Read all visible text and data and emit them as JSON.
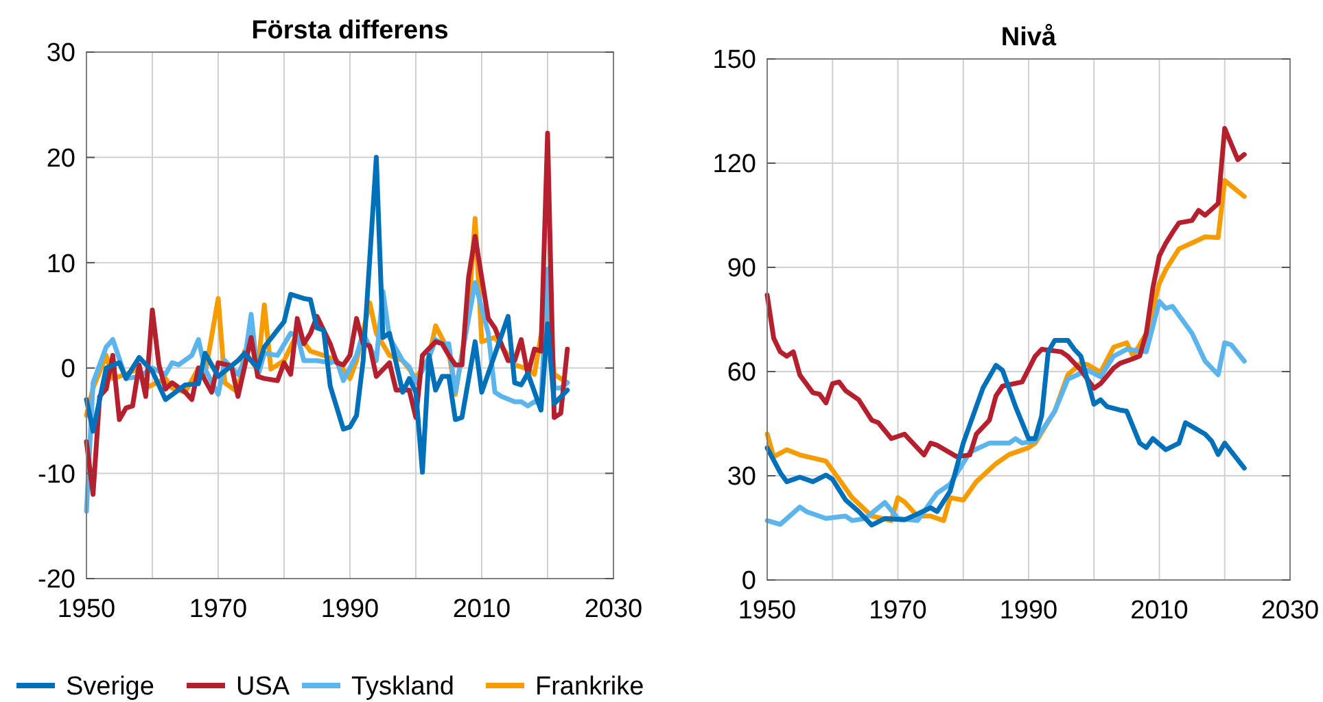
{
  "chart_data": [
    {
      "type": "line",
      "title": "Första differens",
      "legend": "bottom",
      "grid": true,
      "line_style": "solid",
      "xlim": [
        1950,
        2030
      ],
      "xticks": [
        1950,
        {
          "value": 1960,
          "label": null
        },
        1970,
        {
          "value": 1980,
          "label": null
        },
        1990,
        {
          "value": 2000,
          "label": null
        },
        2010,
        {
          "value": 2020,
          "label": null
        },
        2030
      ],
      "ylim": [
        -20,
        30
      ],
      "yticks": [
        -20,
        -10,
        0,
        10,
        20,
        30
      ],
      "series": [
        {
          "name": "Sverige",
          "color": "#0070b8",
          "x": [
            1950,
            1951,
            1953,
            1955,
            1956,
            1958,
            1960,
            1962,
            1965,
            1967,
            1968,
            1970,
            1973,
            1974,
            1976,
            1977,
            1980,
            1981,
            1983,
            1984,
            1985,
            1986,
            1987,
            1989,
            1990,
            1991,
            1992,
            1994,
            1995,
            1996,
            1998,
            1999,
            2000,
            2001,
            2002,
            2003,
            2004,
            2005,
            2006,
            2007,
            2009,
            2010,
            2014,
            2015,
            2016,
            2017,
            2019,
            2020,
            2021,
            2023
          ],
          "values": [
            -3,
            -6,
            0,
            0.5,
            -1,
            1,
            -0.3,
            -3,
            -1.6,
            -1.5,
            1.4,
            -0.8,
            0.7,
            1.4,
            0,
            2,
            4.4,
            7,
            6.6,
            6.5,
            3.8,
            3.6,
            -1.7,
            -5.8,
            -5.6,
            -4.5,
            0.7,
            20,
            2.9,
            3.3,
            -2.3,
            -1,
            -2.3,
            -9.9,
            1.2,
            -2.1,
            -0.8,
            -0.8,
            -4.9,
            -4.7,
            2.5,
            -2.3,
            4.9,
            -1.4,
            -1.6,
            -0.5,
            -4,
            4.2,
            -3.4,
            -2.1
          ]
        },
        {
          "name": "USA",
          "color": "#b5202e",
          "x": [
            1950,
            1951,
            1952,
            1953,
            1954,
            1955,
            1956,
            1957,
            1958,
            1959,
            1960,
            1961,
            1962,
            1963,
            1965,
            1966,
            1967,
            1969,
            1970,
            1972,
            1973,
            1975,
            1976,
            1977,
            1979,
            1980,
            1981,
            1982,
            1983,
            1984,
            1985,
            1987,
            1988,
            1989,
            1990,
            1991,
            1992,
            1993,
            1994,
            1996,
            1997,
            1999,
            2000,
            2001,
            2003,
            2004,
            2005,
            2006,
            2007,
            2008,
            2009,
            2010,
            2011,
            2012,
            2014,
            2015,
            2016,
            2017,
            2018,
            2019,
            2020,
            2021,
            2022,
            2023
          ],
          "values": [
            -7,
            -12,
            -2.7,
            -2,
            1.2,
            -4.9,
            -3.8,
            -3.6,
            0.3,
            -2.7,
            5.5,
            0.3,
            -2,
            -1.4,
            -2.3,
            -3,
            0,
            -2.3,
            0.5,
            0.2,
            -2.7,
            2.9,
            -0.8,
            -1,
            -1.2,
            0.5,
            -0.6,
            4.7,
            2.3,
            3.3,
            4.9,
            2.3,
            0.5,
            0.3,
            1.2,
            4.7,
            2.3,
            2.1,
            -0.8,
            0.5,
            -2.1,
            -2.1,
            -4.7,
            1.2,
            2.5,
            2.3,
            1.2,
            0.3,
            0.3,
            8.6,
            12.5,
            8.6,
            4.7,
            3.8,
            0.7,
            0.7,
            2.7,
            -0.6,
            1.8,
            1.6,
            22.3,
            -4.7,
            -4.3,
            1.8
          ]
        },
        {
          "name": "Tyskland",
          "color": "#5bb4ec",
          "x": [
            1950,
            1951,
            1953,
            1954,
            1956,
            1958,
            1960,
            1962,
            1963,
            1964,
            1966,
            1967,
            1968,
            1970,
            1971,
            1973,
            1974,
            1975,
            1976,
            1977,
            1979,
            1981,
            1982,
            1983,
            1985,
            1987,
            1988,
            1989,
            1991,
            1992,
            1994,
            1995,
            1996,
            1998,
            1999,
            2000,
            2002,
            2003,
            2004,
            2005,
            2006,
            2008,
            2009,
            2011,
            2012,
            2013,
            2015,
            2016,
            2017,
            2018,
            2019,
            2020,
            2021,
            2022,
            2023
          ],
          "values": [
            -13.6,
            -1.4,
            2,
            2.7,
            -1,
            -0.8,
            0,
            -0.6,
            0.5,
            0.3,
            1.2,
            2.7,
            -0.1,
            -2.5,
            0.7,
            -0.6,
            0.7,
            5.1,
            -0.8,
            1.4,
            1.2,
            3.3,
            3.1,
            0.7,
            0.7,
            0.5,
            0.7,
            -1.2,
            1.2,
            3.3,
            0.7,
            7.3,
            2.9,
            0.7,
            0.1,
            -1.4,
            1,
            2.7,
            2.3,
            2.3,
            -2.3,
            4.7,
            8.1,
            3.3,
            -2.3,
            -2.7,
            -3.2,
            -3.2,
            -3.6,
            -3.2,
            -3.4,
            9.4,
            -1.9,
            -1.9,
            -1.4
          ]
        },
        {
          "name": "Frankrike",
          "color": "#f59c00",
          "x": [
            1950,
            1951,
            1953,
            1954,
            1956,
            1958,
            1959,
            1962,
            1963,
            1965,
            1967,
            1968,
            1970,
            1971,
            1973,
            1974,
            1976,
            1977,
            1978,
            1980,
            1982,
            1984,
            1986,
            1988,
            1990,
            1991,
            1993,
            1994,
            1996,
            1998,
            1999,
            2000,
            2002,
            2003,
            2005,
            2006,
            2008,
            2009,
            2010,
            2012,
            2014,
            2015,
            2017,
            2018,
            2020,
            2021,
            2023
          ],
          "values": [
            -4.5,
            -1.9,
            1.2,
            -1,
            -0.6,
            0,
            -1.9,
            -1,
            -1.9,
            -2.3,
            0,
            -0.6,
            6.6,
            -1.4,
            -2.3,
            1.6,
            -0.2,
            6,
            -0.1,
            0.7,
            3.3,
            1.6,
            1.2,
            0.7,
            -1,
            0.7,
            6.2,
            3.3,
            1.2,
            0.7,
            -0.1,
            -1,
            1,
            4,
            1.6,
            -2.5,
            5.1,
            14.2,
            2.5,
            2.9,
            1.2,
            0.3,
            -0.1,
            -0.6,
            6.8,
            -0.6,
            -1.4
          ]
        }
      ]
    },
    {
      "type": "line",
      "title": "Nivå",
      "grid": true,
      "line_style": "solid",
      "xlim": [
        1950,
        2030
      ],
      "xticks": [
        1950,
        {
          "value": 1960,
          "label": null
        },
        1970,
        {
          "value": 1980,
          "label": null
        },
        1990,
        {
          "value": 2000,
          "label": null
        },
        2010,
        {
          "value": 2020,
          "label": null
        },
        2030
      ],
      "ylim": [
        0,
        150
      ],
      "yticks": [
        0,
        30,
        60,
        90,
        120,
        150
      ],
      "series": [
        {
          "color": "#0070b8",
          "x": [
            1950,
            1952,
            1953,
            1955,
            1957,
            1959,
            1960,
            1962,
            1964,
            1966,
            1968,
            1971,
            1973,
            1975,
            1976,
            1978,
            1980,
            1983,
            1985,
            1986,
            1988,
            1990,
            1991,
            1992,
            1993,
            1994,
            1996,
            1997,
            1998,
            2000,
            2001,
            2002,
            2004,
            2005,
            2007,
            2008,
            2009,
            2011,
            2013,
            2014,
            2017,
            2018,
            2019,
            2020,
            2023
          ],
          "values": [
            38,
            30.9,
            28.3,
            29.6,
            28.3,
            30.2,
            29,
            23,
            19.7,
            15.8,
            17.7,
            17.3,
            19,
            20.8,
            19.7,
            25.6,
            39.4,
            55.2,
            61.8,
            60.4,
            49.9,
            40.7,
            40.7,
            47.3,
            65.7,
            69,
            69,
            66.4,
            64.4,
            50.6,
            51.9,
            49.9,
            48.9,
            48.6,
            39.4,
            38.1,
            40.7,
            37.5,
            39.4,
            45.3,
            42,
            40,
            36.1,
            39.4,
            32.2
          ]
        },
        {
          "color": "#b5202e",
          "x": [
            1950,
            1951,
            1952,
            1953,
            1954,
            1955,
            1957,
            1958,
            1959,
            1960,
            1961,
            1962,
            1964,
            1966,
            1967,
            1969,
            1971,
            1972,
            1974,
            1975,
            1976,
            1979,
            1981,
            1982,
            1984,
            1985,
            1986,
            1989,
            1991,
            1992,
            1995,
            1996,
            1998,
            2000,
            2001,
            2003,
            2004,
            2006,
            2007,
            2008,
            2009,
            2010,
            2011,
            2012,
            2013,
            2015,
            2016,
            2017,
            2019,
            2020,
            2022,
            2023
          ],
          "values": [
            82,
            69.6,
            65.7,
            64.4,
            65.7,
            59,
            53.9,
            53.5,
            51,
            56.5,
            57,
            54.5,
            51.9,
            46,
            45.3,
            40.7,
            42,
            40,
            36,
            39.4,
            38.8,
            35.5,
            36,
            42,
            46,
            53,
            55.8,
            57,
            64.4,
            66.4,
            65.7,
            64.4,
            60.4,
            55.2,
            56.5,
            61,
            62.4,
            63.7,
            64.5,
            71,
            84,
            93.3,
            97,
            100,
            102.8,
            103.5,
            106.4,
            105,
            108.4,
            130,
            121,
            122.5
          ]
        },
        {
          "color": "#5bb4ec",
          "x": [
            1950,
            1952,
            1955,
            1956,
            1959,
            1962,
            1963,
            1965,
            1968,
            1970,
            1973,
            1976,
            1978,
            1981,
            1984,
            1987,
            1988,
            1989,
            1991,
            1994,
            1996,
            1999,
            2001,
            2003,
            2005,
            2008,
            2010,
            2011,
            2012,
            2015,
            2017,
            2019,
            2020,
            2021,
            2023
          ],
          "values": [
            17.1,
            16,
            21,
            19.7,
            17.7,
            18.4,
            17.1,
            17.7,
            22.3,
            17.7,
            17.1,
            25,
            27.6,
            36.8,
            39.4,
            39.4,
            40.7,
            39.4,
            40,
            48.6,
            57.8,
            60.4,
            58.5,
            64.4,
            66.4,
            65.7,
            80.2,
            78.2,
            78.8,
            71,
            63,
            59.1,
            68.3,
            67.7,
            63
          ]
        },
        {
          "color": "#f59c00",
          "x": [
            1950,
            1951,
            1953,
            1955,
            1959,
            1961,
            1963,
            1966,
            1969,
            1970,
            1971,
            1973,
            1975,
            1977,
            1978,
            1980,
            1982,
            1985,
            1987,
            1990,
            1991,
            1994,
            1996,
            1998,
            1999,
            2001,
            2003,
            2005,
            2006,
            2008,
            2010,
            2011,
            2013,
            2016,
            2017,
            2019,
            2020,
            2023
          ],
          "values": [
            42,
            35.5,
            37.5,
            36,
            34.2,
            29,
            23.7,
            18.4,
            17.1,
            23.7,
            22.5,
            18.4,
            18.4,
            17.1,
            23.7,
            23,
            28.3,
            33.5,
            36.1,
            38.1,
            39.4,
            48.6,
            59.1,
            62.4,
            62,
            59.8,
            67,
            68.3,
            64.4,
            71,
            85.4,
            89.4,
            95.3,
            97.9,
            98.8,
            98.6,
            115,
            110.4
          ]
        }
      ]
    }
  ]
}
